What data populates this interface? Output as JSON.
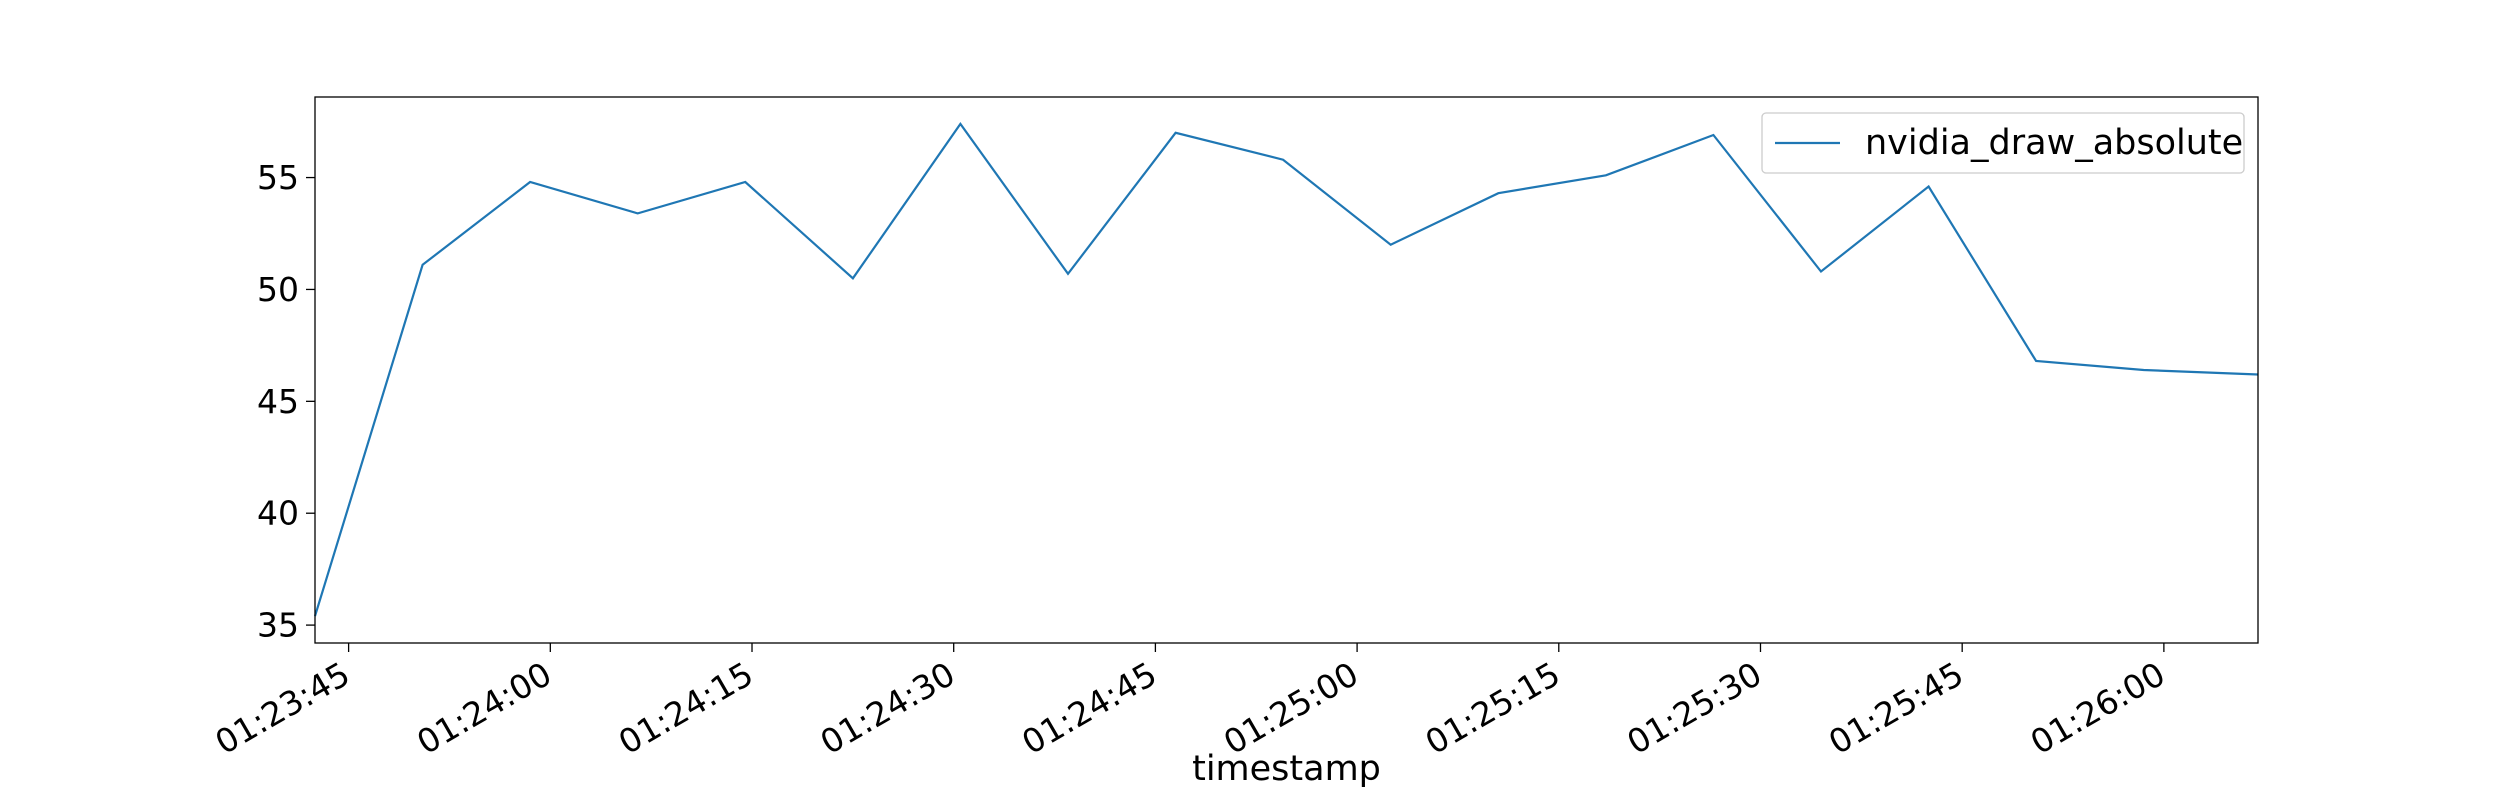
{
  "chart_data": {
    "type": "line",
    "title": "",
    "xlabel": "timestamp",
    "ylabel": "",
    "x_tick_labels": [
      "01:23:45",
      "01:24:00",
      "01:24:15",
      "01:24:30",
      "01:24:45",
      "01:25:00",
      "01:25:15",
      "01:25:30",
      "01:25:45",
      "01:26:00"
    ],
    "y_tick_labels": [
      "35",
      "40",
      "45",
      "50",
      "55"
    ],
    "x_tick_values": [
      "01:23:45",
      "01:24:00",
      "01:24:15",
      "01:24:30",
      "01:24:45",
      "01:25:00",
      "01:25:15",
      "01:25:30",
      "01:25:45",
      "01:26:00"
    ],
    "y_tick_values": [
      35,
      40,
      45,
      50,
      55
    ],
    "xlim": [
      "01:23:42.5",
      "01:26:07"
    ],
    "ylim": [
      34.2,
      58.6
    ],
    "grid": false,
    "legend_position": "top-right",
    "series": [
      {
        "name": "nvidia_draw_absolute",
        "color": "#1f77b4",
        "x": [
          "01:23:42.5",
          "01:23:50.5",
          "01:23:58.5",
          "01:24:06.5",
          "01:24:14.5",
          "01:24:22.5",
          "01:24:30.5",
          "01:24:38.5",
          "01:24:46.5",
          "01:24:54.5",
          "01:25:02.5",
          "01:25:10.5",
          "01:25:18.5",
          "01:25:26.5",
          "01:25:34.5",
          "01:25:42.5",
          "01:25:50.5",
          "01:25:58.5",
          "01:26:07"
        ],
        "y": [
          35.4,
          51.1,
          54.8,
          53.4,
          54.8,
          50.5,
          57.4,
          50.7,
          57.0,
          55.8,
          52.0,
          54.3,
          55.1,
          56.9,
          50.8,
          54.6,
          46.8,
          46.4,
          46.2
        ]
      }
    ]
  }
}
